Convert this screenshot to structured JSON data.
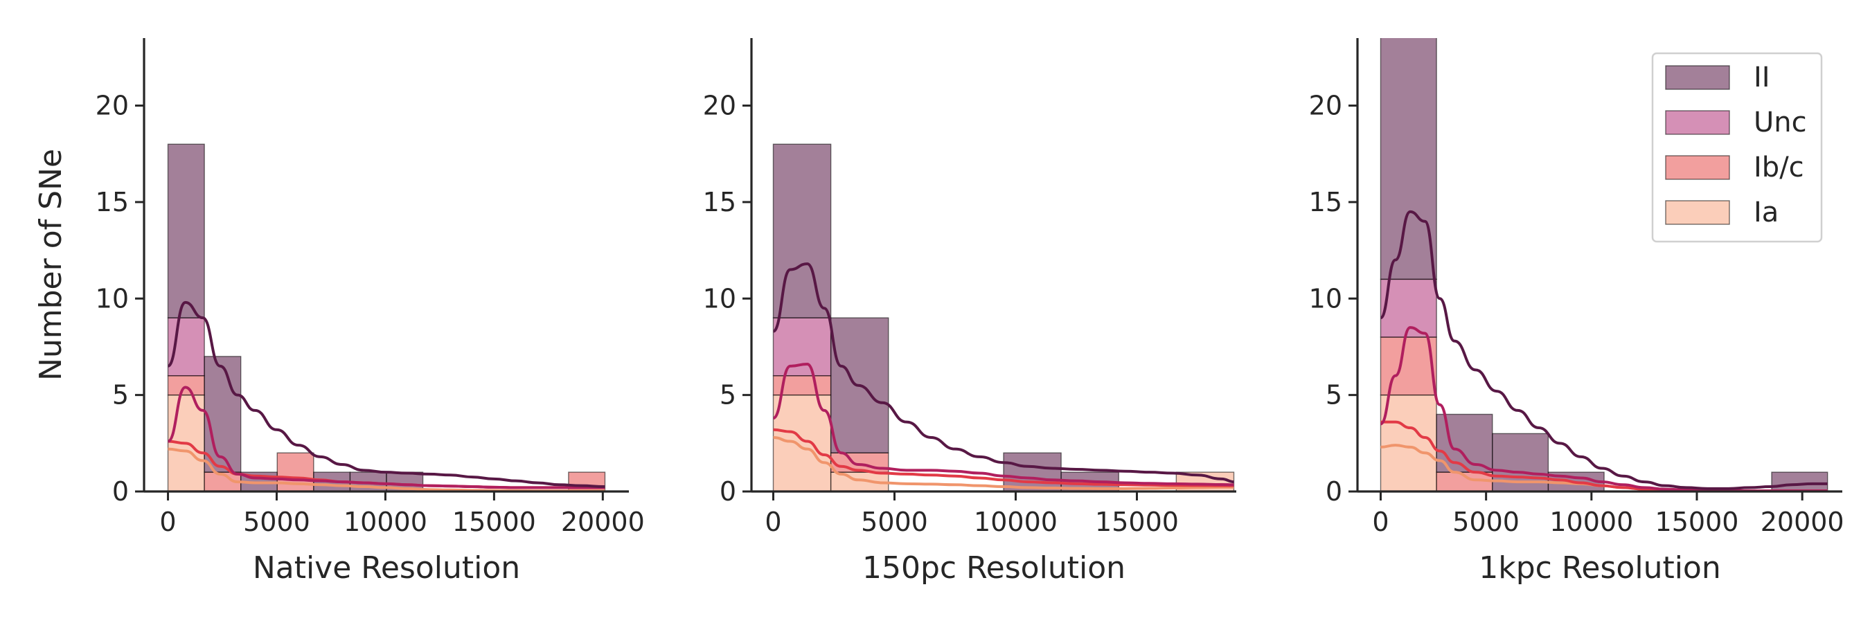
{
  "chart_data": {
    "type": "histogram",
    "stacked": true,
    "ylabel": "Number of SNe",
    "ylim": [
      0,
      23.5
    ],
    "yticks": [
      0,
      5,
      10,
      15,
      20
    ],
    "legend": {
      "placement": "top-right of third panel",
      "entries": [
        {
          "name": "II",
          "color": "#581845"
        },
        {
          "name": "Unc",
          "color": "#b2357a"
        },
        {
          "name": "Ib/c",
          "color": "#e8504f"
        },
        {
          "name": "Ia",
          "color": "#f7a582"
        }
      ]
    },
    "series_order": [
      "Ia",
      "Ib/c",
      "Unc",
      "II"
    ],
    "colors": {
      "II": "#581845",
      "Unc": "#b2357a",
      "Ib/c": "#e8504f",
      "Ia": "#f7a582"
    },
    "panels": [
      {
        "xlabel": "Native Resolution",
        "xlim": [
          -1100,
          21200
        ],
        "xticks": [
          0,
          5000,
          10000,
          15000,
          20000
        ],
        "bin_edges": [
          0,
          1675,
          3350,
          5025,
          6700,
          8375,
          10050,
          11725,
          13400,
          15075,
          16750,
          18425,
          20100
        ],
        "counts": {
          "Ia": [
            5,
            0,
            0,
            0,
            0,
            0,
            0,
            0,
            0,
            0,
            0,
            0
          ],
          "Ib/c": [
            1,
            1,
            0,
            2,
            0,
            0,
            0,
            0,
            0,
            0,
            0,
            1
          ],
          "Unc": [
            3,
            0,
            0,
            0,
            0,
            0,
            0,
            0,
            0,
            0,
            0,
            0
          ],
          "II": [
            9,
            6,
            1,
            0,
            1,
            1,
            1,
            0,
            0,
            0,
            0,
            0
          ]
        },
        "kde": {
          "x": [
            0,
            800,
            1600,
            2400,
            3200,
            4000,
            5000,
            6000,
            7000,
            8000,
            9000,
            10000,
            11000,
            12000,
            13000,
            14000,
            15000,
            16000,
            17000,
            18000,
            19000,
            20100
          ],
          "II": [
            6.5,
            9.8,
            9.0,
            6.5,
            5.0,
            4.2,
            3.2,
            2.4,
            1.8,
            1.4,
            1.1,
            1.0,
            0.95,
            0.9,
            0.85,
            0.75,
            0.65,
            0.55,
            0.45,
            0.35,
            0.3,
            0.25
          ],
          "Unc": [
            2.6,
            5.4,
            4.2,
            1.8,
            0.9,
            0.7,
            0.65,
            0.6,
            0.55,
            0.5,
            0.45,
            0.4,
            0.35,
            0.3,
            0.28,
            0.25,
            0.22,
            0.2,
            0.2,
            0.2,
            0.2,
            0.2
          ],
          "Ib/c": [
            2.6,
            2.5,
            2.0,
            1.3,
            0.9,
            0.8,
            0.75,
            0.7,
            0.6,
            0.5,
            0.45,
            0.4,
            0.35,
            0.3,
            0.28,
            0.25,
            0.22,
            0.2,
            0.2,
            0.2,
            0.2,
            0.2
          ],
          "Ia": [
            2.2,
            2.1,
            1.6,
            0.9,
            0.5,
            0.45,
            0.45,
            0.4,
            0.35,
            0.3,
            0.25,
            0.2,
            0.15,
            0.1,
            0.08,
            0.06,
            0.05,
            0.04,
            0.03,
            0.03,
            0.03,
            0.03
          ]
        }
      },
      {
        "xlabel": "150pc Resolution",
        "xlim": [
          -900,
          19100
        ],
        "xticks": [
          0,
          5000,
          10000,
          15000
        ],
        "bin_edges": [
          0,
          2375,
          4750,
          7125,
          9500,
          11875,
          14250,
          16625,
          19000
        ],
        "counts": {
          "Ia": [
            5,
            1,
            0,
            0,
            0,
            0,
            0,
            1
          ],
          "Ib/c": [
            1,
            1,
            0,
            0,
            0,
            0,
            0,
            0
          ],
          "Unc": [
            3,
            0,
            0,
            0,
            0,
            0,
            0,
            0
          ],
          "II": [
            9,
            7,
            0,
            0,
            2,
            1,
            0,
            0
          ]
        },
        "kde": {
          "x": [
            0,
            700,
            1400,
            2100,
            2800,
            3500,
            4500,
            5500,
            6500,
            7500,
            8500,
            9500,
            10500,
            11500,
            12500,
            13500,
            14500,
            15500,
            16500,
            17500,
            18500,
            19000
          ],
          "II": [
            8.3,
            11.5,
            11.8,
            9.5,
            6.5,
            5.5,
            4.6,
            3.6,
            2.8,
            2.2,
            1.8,
            1.5,
            1.3,
            1.2,
            1.15,
            1.1,
            1.05,
            1.0,
            0.95,
            0.85,
            0.65,
            0.5
          ],
          "Unc": [
            3.8,
            6.5,
            6.6,
            4.2,
            2.0,
            1.4,
            1.2,
            1.1,
            1.1,
            1.05,
            0.95,
            0.8,
            0.7,
            0.6,
            0.55,
            0.5,
            0.45,
            0.42,
            0.4,
            0.38,
            0.36,
            0.35
          ],
          "Ib/c": [
            3.2,
            3.1,
            2.6,
            1.9,
            1.3,
            1.1,
            0.95,
            0.9,
            0.85,
            0.8,
            0.7,
            0.6,
            0.5,
            0.45,
            0.4,
            0.37,
            0.35,
            0.33,
            0.32,
            0.31,
            0.3,
            0.3
          ],
          "Ia": [
            2.8,
            2.6,
            2.2,
            1.5,
            0.9,
            0.6,
            0.45,
            0.4,
            0.38,
            0.35,
            0.3,
            0.25,
            0.2,
            0.18,
            0.16,
            0.15,
            0.15,
            0.16,
            0.18,
            0.2,
            0.22,
            0.22
          ]
        }
      },
      {
        "xlabel": "1kpc Resolution",
        "xlim": [
          -1100,
          21900
        ],
        "xticks": [
          0,
          5000,
          10000,
          15000,
          20000
        ],
        "bin_edges": [
          0,
          2650,
          5300,
          7950,
          10600,
          13250,
          15900,
          18550,
          21200
        ],
        "counts": {
          "Ia": [
            5,
            0,
            0,
            0,
            0,
            0,
            0,
            0
          ],
          "Ib/c": [
            3,
            1,
            0,
            0,
            0,
            0,
            0,
            0
          ],
          "Unc": [
            3,
            0,
            0,
            0,
            0,
            0,
            0,
            0
          ],
          "II": [
            13,
            3,
            3,
            1,
            0,
            0,
            0,
            1
          ]
        },
        "kde": {
          "x": [
            0,
            700,
            1400,
            2100,
            2800,
            3500,
            4500,
            5500,
            6500,
            7500,
            8500,
            9500,
            10500,
            11500,
            12500,
            13500,
            14500,
            15500,
            16500,
            17500,
            18500,
            19500,
            20500,
            21200
          ],
          "II": [
            9.0,
            12.0,
            14.5,
            14.0,
            10.0,
            7.8,
            6.3,
            5.2,
            4.2,
            3.3,
            2.5,
            1.8,
            1.2,
            0.8,
            0.5,
            0.3,
            0.2,
            0.15,
            0.15,
            0.2,
            0.25,
            0.35,
            0.4,
            0.4
          ],
          "Unc": [
            3.5,
            6.0,
            8.5,
            8.2,
            4.5,
            2.2,
            1.4,
            1.1,
            1.0,
            0.9,
            0.8,
            0.7,
            0.5,
            0.35,
            0.2,
            0.12,
            0.08,
            0.05,
            0.04,
            0.03,
            0.03,
            0.03,
            0.03,
            0.03
          ],
          "Ib/c": [
            3.6,
            3.6,
            3.3,
            2.8,
            2.1,
            1.5,
            1.0,
            0.8,
            0.75,
            0.7,
            0.6,
            0.45,
            0.3,
            0.2,
            0.12,
            0.08,
            0.05,
            0.04,
            0.03,
            0.03,
            0.03,
            0.03,
            0.03,
            0.03
          ],
          "Ia": [
            2.3,
            2.4,
            2.3,
            2.0,
            1.6,
            1.0,
            0.6,
            0.55,
            0.5,
            0.5,
            0.45,
            0.4,
            0.3,
            0.2,
            0.12,
            0.08,
            0.05,
            0.04,
            0.03,
            0.03,
            0.03,
            0.03,
            0.03,
            0.03
          ]
        }
      }
    ]
  }
}
